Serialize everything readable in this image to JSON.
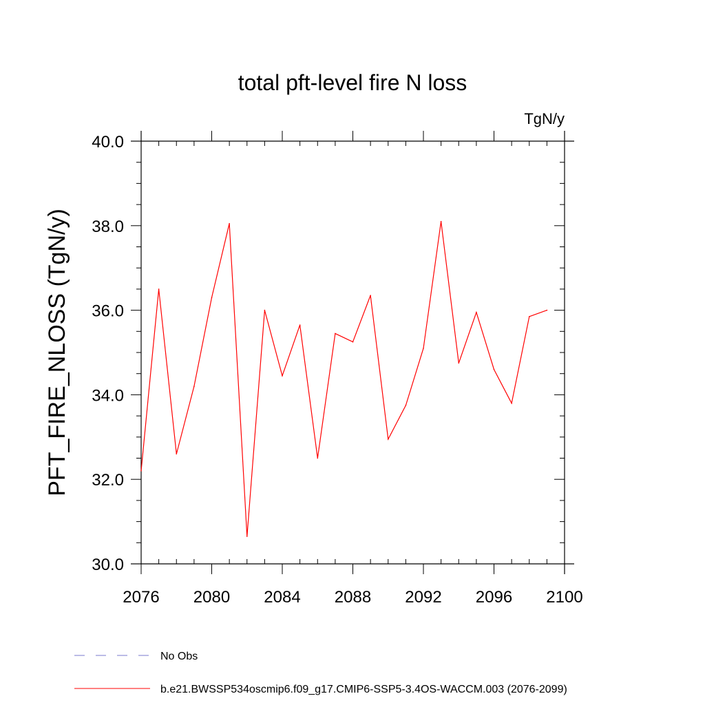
{
  "chart_data": {
    "type": "line",
    "title": "total pft-level fire N loss",
    "units": "TgN/y",
    "xlabel": "",
    "ylabel": "PFT_FIRE_NLOSS  (TgN/y)",
    "xlim": [
      2076,
      2100
    ],
    "ylim": [
      30.0,
      40.0
    ],
    "xticks": [
      2076,
      2080,
      2084,
      2088,
      2092,
      2096,
      2100
    ],
    "xtick_labels": [
      "2076",
      "2080",
      "2084",
      "2088",
      "2092",
      "2096",
      "2100"
    ],
    "yticks": [
      30.0,
      32.0,
      34.0,
      36.0,
      38.0,
      40.0
    ],
    "ytick_labels": [
      "30.0",
      "32.0",
      "34.0",
      "36.0",
      "38.0",
      "40.0"
    ],
    "series": [
      {
        "name": "b.e21.BWSSP534oscmip6.f09_g17.CMIP6-SSP5-3.4OS-WACCM.003 (2076-2099)",
        "color": "#ff0000",
        "x": [
          2076,
          2077,
          2078,
          2079,
          2080,
          2081,
          2082,
          2083,
          2084,
          2085,
          2086,
          2087,
          2088,
          2089,
          2090,
          2091,
          2092,
          2093,
          2094,
          2095,
          2096,
          2097,
          2098,
          2099
        ],
        "y": [
          32.2,
          36.5,
          32.6,
          34.2,
          36.3,
          38.05,
          30.65,
          36.0,
          34.45,
          35.65,
          32.5,
          35.45,
          35.25,
          36.35,
          32.95,
          33.75,
          35.1,
          38.1,
          34.75,
          35.95,
          34.6,
          33.8,
          35.85,
          36.0
        ]
      }
    ],
    "legend": [
      {
        "label": "No Obs",
        "style": "dashed",
        "color": "#7777cc"
      },
      {
        "label": "b.e21.BWSSP534oscmip6.f09_g17.CMIP6-SSP5-3.4OS-WACCM.003 (2076-2099)",
        "style": "solid",
        "color": "#ff0000"
      }
    ]
  }
}
